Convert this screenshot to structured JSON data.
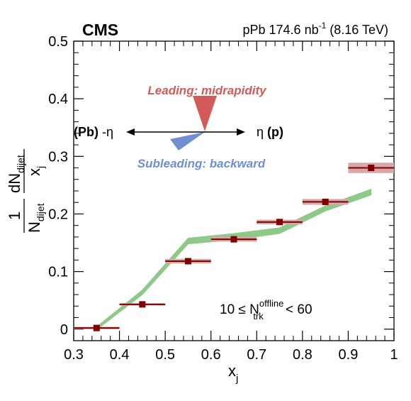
{
  "chart_data": {
    "type": "scatter",
    "experiment_label": "CMS",
    "lumi": {
      "prefix": "pPb 174.6 nb",
      "exponent": "-1",
      "suffix": " (8.16 TeV)"
    },
    "xlabel": {
      "main": "x",
      "sub": "j"
    },
    "ylabel": {
      "numerator_one": "1",
      "denominator_n": "N",
      "denominator_sub": "dijet",
      "frac_top_d": "dN",
      "frac_top_sub": "dijet",
      "frac_bottom_x": "x",
      "frac_bottom_sub": "j"
    },
    "xlim": [
      0.3,
      1.0
    ],
    "ylim": [
      -0.02,
      0.5
    ],
    "x_ticks": [
      0.3,
      0.4,
      0.5,
      0.6,
      0.7,
      0.8,
      0.9,
      1.0
    ],
    "x_tick_labels": [
      "0.3",
      "0.4",
      "0.5",
      "0.6",
      "0.7",
      "0.8",
      "0.9",
      "1"
    ],
    "y_ticks": [
      0,
      0.1,
      0.2,
      0.3,
      0.4,
      0.5
    ],
    "y_tick_labels": [
      "0",
      "0.1",
      "0.2",
      "0.3",
      "0.4",
      "0.5"
    ],
    "data_points": [
      {
        "x": 0.35,
        "y": 0.002,
        "x_low": 0.3,
        "x_high": 0.4,
        "syst": 0.002
      },
      {
        "x": 0.45,
        "y": 0.043,
        "x_low": 0.4,
        "x_high": 0.5,
        "syst": 0.002
      },
      {
        "x": 0.55,
        "y": 0.118,
        "x_low": 0.5,
        "x_high": 0.6,
        "syst": 0.004
      },
      {
        "x": 0.65,
        "y": 0.156,
        "x_low": 0.6,
        "x_high": 0.7,
        "syst": 0.004
      },
      {
        "x": 0.75,
        "y": 0.186,
        "x_low": 0.7,
        "x_high": 0.8,
        "syst": 0.004
      },
      {
        "x": 0.85,
        "y": 0.221,
        "x_low": 0.8,
        "x_high": 0.9,
        "syst": 0.005
      },
      {
        "x": 0.95,
        "y": 0.28,
        "x_low": 0.9,
        "x_high": 1.0,
        "syst": 0.009
      }
    ],
    "model_band": [
      {
        "x": 0.35,
        "y_low": -0.001,
        "y_high": 0.004
      },
      {
        "x": 0.45,
        "y_low": 0.06,
        "y_high": 0.068
      },
      {
        "x": 0.55,
        "y_low": 0.148,
        "y_high": 0.158
      },
      {
        "x": 0.65,
        "y_low": 0.155,
        "y_high": 0.166
      },
      {
        "x": 0.75,
        "y_low": 0.166,
        "y_high": 0.176
      },
      {
        "x": 0.85,
        "y_low": 0.205,
        "y_high": 0.214
      },
      {
        "x": 0.95,
        "y_low": 0.233,
        "y_high": 0.243
      }
    ],
    "annotations": {
      "leading": "Leading: midrapidity",
      "subleading": "Subleading: backward",
      "left_eta": {
        "paren": "(Pb)",
        "sign_eta": " -η"
      },
      "right_eta": {
        "eta": "η ",
        "paren": "(p)"
      },
      "cut": {
        "prefix": "10 ≤ N",
        "sup": "offline",
        "sub": "trk",
        "suffix": " < 60"
      }
    },
    "colors": {
      "data_marker": "#7f0000",
      "syst_box": "#d8a8a8",
      "model_band": "#8fc98a",
      "leading_triangle": "#d45a5a",
      "subleading_triangle": "#6f8fd1"
    },
    "grid": false
  }
}
